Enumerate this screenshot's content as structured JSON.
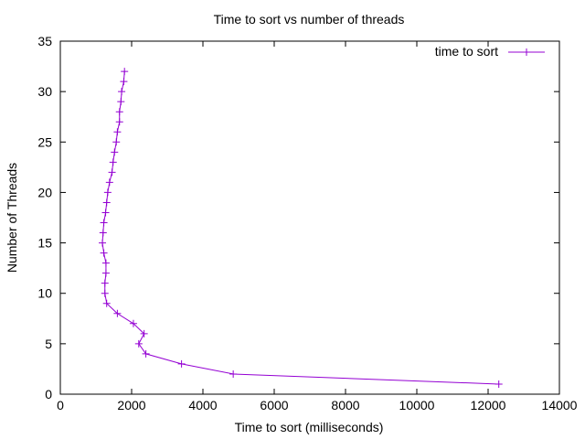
{
  "chart_data": {
    "type": "line",
    "title": "Time to sort vs number of threads",
    "xlabel": "Time to sort (milliseconds)",
    "ylabel": "Number of Threads",
    "xlim": [
      0,
      14000
    ],
    "ylim": [
      0,
      35
    ],
    "xticks": [
      0,
      2000,
      4000,
      6000,
      8000,
      10000,
      12000,
      14000
    ],
    "yticks": [
      0,
      5,
      10,
      15,
      20,
      25,
      30,
      35
    ],
    "grid": false,
    "legend": "top-right",
    "series": [
      {
        "name": "time to sort",
        "color": "#9400d3",
        "marker": "plus",
        "points": [
          [
            12300,
            1
          ],
          [
            4850,
            2
          ],
          [
            3400,
            3
          ],
          [
            2400,
            4
          ],
          [
            2200,
            5
          ],
          [
            2350,
            6
          ],
          [
            2050,
            7
          ],
          [
            1600,
            8
          ],
          [
            1300,
            9
          ],
          [
            1250,
            10
          ],
          [
            1250,
            11
          ],
          [
            1280,
            12
          ],
          [
            1280,
            13
          ],
          [
            1220,
            14
          ],
          [
            1180,
            15
          ],
          [
            1200,
            16
          ],
          [
            1220,
            17
          ],
          [
            1270,
            18
          ],
          [
            1300,
            19
          ],
          [
            1330,
            20
          ],
          [
            1380,
            21
          ],
          [
            1450,
            22
          ],
          [
            1480,
            23
          ],
          [
            1520,
            24
          ],
          [
            1570,
            25
          ],
          [
            1600,
            26
          ],
          [
            1660,
            27
          ],
          [
            1660,
            28
          ],
          [
            1700,
            29
          ],
          [
            1720,
            30
          ],
          [
            1780,
            31
          ],
          [
            1800,
            32
          ]
        ]
      }
    ]
  }
}
